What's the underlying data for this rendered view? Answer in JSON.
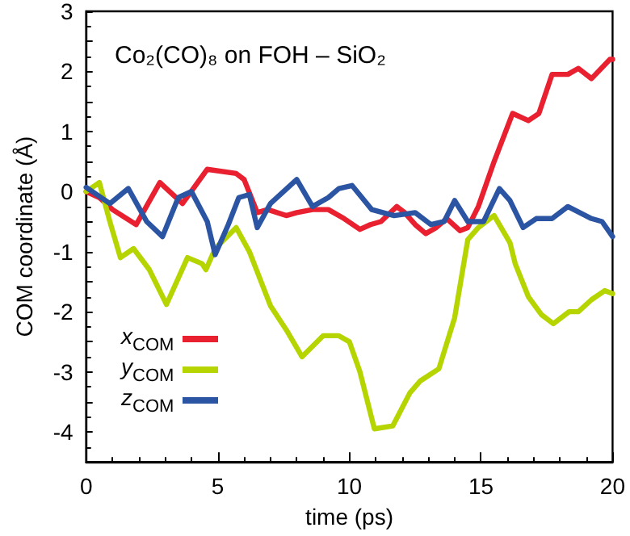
{
  "chart_data": {
    "type": "line",
    "title": "Co₂(CO)₈ on FOH – SiO₂",
    "xlabel": "time (ps)",
    "ylabel": "COM coordinate (Å)",
    "xlim": [
      0,
      20
    ],
    "xticks": [
      0,
      5,
      10,
      15,
      20
    ],
    "ylim": [
      -4.5,
      3
    ],
    "yticks": [
      -4,
      -3,
      -2,
      -1,
      0,
      1,
      2,
      3
    ],
    "grid": false,
    "legend": "bottom left",
    "marker": "none",
    "line_style": "solid",
    "series": [
      {
        "name": "x$_{COM}$",
        "color": "#e8202f",
        "x": [
          0,
          0.5,
          1,
          1.9,
          2.8,
          3.66,
          4.6,
          5.7,
          6,
          6.5,
          6.9,
          7.6,
          8,
          8.6,
          9.2,
          9.8,
          10.4,
          10.8,
          11.2,
          11.8,
          12.1,
          12.5,
          12.9,
          13.3,
          13.7,
          14.2,
          14.5,
          14.9,
          15.5,
          16.2,
          16.8,
          17.2,
          17.7,
          18.3,
          18.7,
          19.2,
          19.9,
          20
        ],
        "values": [
          0,
          -0.1,
          -0.3,
          -0.55,
          0.15,
          -0.2,
          0.37,
          0.3,
          0.2,
          -0.35,
          -0.3,
          -0.4,
          -0.35,
          -0.3,
          -0.3,
          -0.45,
          -0.63,
          -0.55,
          -0.5,
          -0.25,
          -0.35,
          -0.55,
          -0.7,
          -0.6,
          -0.45,
          -0.65,
          -0.6,
          -0.25,
          0.5,
          1.3,
          1.18,
          1.3,
          1.95,
          1.95,
          2.05,
          1.88,
          2.2,
          2.2
        ]
      },
      {
        "name": "y$_{COM}$",
        "color": "#b5d400",
        "x": [
          0,
          0.5,
          0.9,
          1.3,
          1.8,
          2.4,
          3.05,
          3.85,
          4.4,
          4.55,
          4.9,
          5.7,
          6.2,
          7,
          7.6,
          8.2,
          9,
          9.6,
          10,
          10.4,
          10.95,
          11.65,
          12.3,
          12.7,
          13.4,
          14,
          14.5,
          14.9,
          15.5,
          16.1,
          16.3,
          16.8,
          17.3,
          17.75,
          18.35,
          18.7,
          19.2,
          19.7,
          20
        ],
        "values": [
          0,
          0.15,
          -0.5,
          -1.1,
          -0.95,
          -1.3,
          -1.88,
          -1.1,
          -1.2,
          -1.3,
          -0.95,
          -0.6,
          -1.0,
          -1.9,
          -2.3,
          -2.75,
          -2.4,
          -2.4,
          -2.5,
          -3.0,
          -3.95,
          -3.9,
          -3.35,
          -3.15,
          -2.95,
          -2.1,
          -0.8,
          -0.6,
          -0.4,
          -0.85,
          -1.2,
          -1.75,
          -2.05,
          -2.2,
          -2.0,
          -2.0,
          -1.8,
          -1.65,
          -1.7
        ]
      },
      {
        "name": "z$_{COM}$",
        "color": "#2b54a3",
        "x": [
          0,
          0.9,
          1.6,
          2.3,
          2.9,
          3.5,
          4,
          4.6,
          4.9,
          5.4,
          5.8,
          6.2,
          6.5,
          7,
          8,
          8.6,
          9.2,
          9.6,
          10.1,
          10.85,
          11.7,
          12.5,
          13.1,
          13.6,
          14,
          14.5,
          15.1,
          15.7,
          16.1,
          16.6,
          17.1,
          17.7,
          18.3,
          19.2,
          19.6,
          20
        ],
        "values": [
          0.07,
          -0.2,
          0.05,
          -0.5,
          -0.75,
          -0.1,
          0,
          -0.5,
          -1.05,
          -0.55,
          -0.1,
          -0.05,
          -0.6,
          -0.2,
          0.2,
          -0.25,
          -0.1,
          0.05,
          0.1,
          -0.3,
          -0.4,
          -0.35,
          -0.55,
          -0.5,
          -0.15,
          -0.5,
          -0.5,
          0.05,
          -0.15,
          -0.6,
          -0.45,
          -0.45,
          -0.25,
          -0.45,
          -0.5,
          -0.75
        ]
      }
    ]
  }
}
